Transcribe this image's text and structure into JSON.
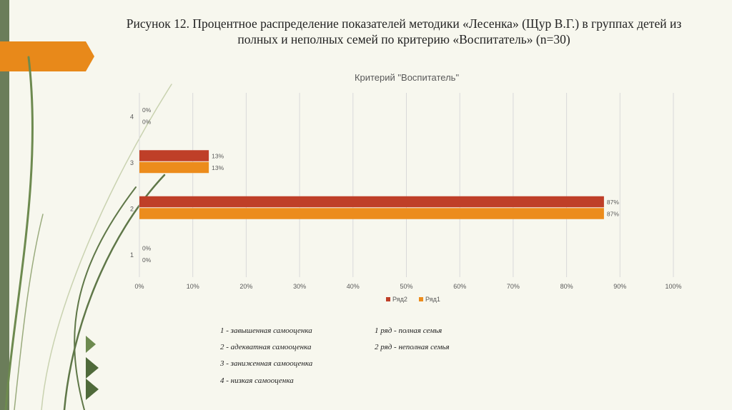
{
  "slide": {
    "title": "Рисунок 12. Процентное распределение показателей методики «Лесенка» (Щур В.Г.) в группах детей из полных и неполных семей по критерию «Воспитатель» (n=30)"
  },
  "colors": {
    "sidebar": "#6b7d5a",
    "accent_orange": "#e8891a",
    "series_ryad2": "#bf3f28",
    "series_ryad1": "#ec8c1c",
    "background": "#f7f7ee"
  },
  "chart_data": {
    "type": "bar",
    "orientation": "horizontal",
    "title": "Критерий \"Воспитатель\"",
    "categories": [
      "1",
      "2",
      "3",
      "4"
    ],
    "series": [
      {
        "name": "Ряд2",
        "values": [
          0,
          87,
          13,
          0
        ],
        "labels": [
          "0%",
          "87%",
          "13%",
          "0%"
        ],
        "color": "#bf3f28"
      },
      {
        "name": "Ряд1",
        "values": [
          0,
          87,
          13,
          0
        ],
        "labels": [
          "0%",
          "87%",
          "13%",
          "0%"
        ],
        "color": "#ec8c1c"
      }
    ],
    "xlim": [
      0,
      100
    ],
    "x_ticks": [
      "0%",
      "10%",
      "20%",
      "30%",
      "40%",
      "50%",
      "60%",
      "70%",
      "80%",
      "90%",
      "100%"
    ],
    "grid": "vertical",
    "legend": "bottom"
  },
  "notes": {
    "left": [
      "1 - завышенная самооценка",
      "2 - адекватная самооценка",
      "3 - заниженная самооценка",
      "4 - низкая самооценка"
    ],
    "right": [
      "1 ряд - полная семья",
      "2 ряд -  неполная семья"
    ]
  }
}
